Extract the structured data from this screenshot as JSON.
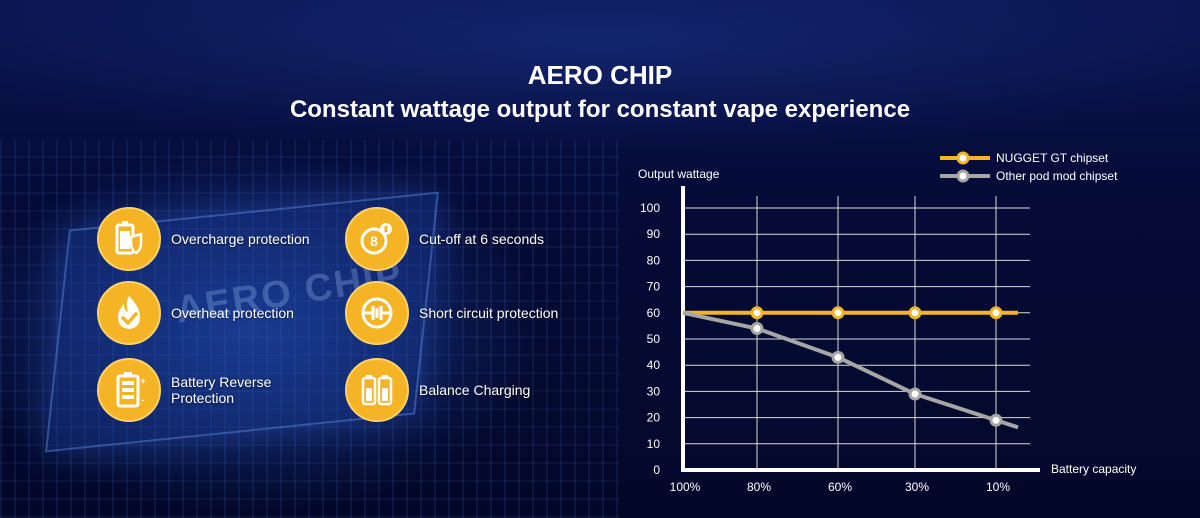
{
  "header": {
    "title": "AERO CHIP",
    "subtitle": "Constant wattage output for constant  vape experience"
  },
  "background": {
    "chip_text": "AERO CHIP"
  },
  "features": [
    {
      "label": "Overcharge protection",
      "icon": "battery-shield-icon"
    },
    {
      "label": "Cut-off at 6 seconds",
      "icon": "timer-8-icon"
    },
    {
      "label": "Overheat protection",
      "icon": "flame-check-icon"
    },
    {
      "label": "Short circuit protection",
      "icon": "circuit-icon"
    },
    {
      "label": "Battery Reverse\nProtection",
      "icon": "battery-reverse-icon"
    },
    {
      "label": "Balance Charging",
      "icon": "dual-battery-icon"
    }
  ],
  "colors": {
    "accent": "#f5b326",
    "nugget_series": "#f5b326",
    "other_series": "#a6a6a6",
    "background": "#050b36"
  },
  "chart_data": {
    "type": "line",
    "title": "",
    "ylabel": "Output wattage",
    "xlabel": "Battery capacity",
    "categories": [
      "100%",
      "80%",
      "60%",
      "30%",
      "10%"
    ],
    "ylim": [
      0,
      100
    ],
    "yticks": [
      0,
      10,
      20,
      30,
      40,
      50,
      60,
      70,
      80,
      90,
      100
    ],
    "grid": true,
    "legend": "top-right",
    "series": [
      {
        "name": "NUGGET GT chipset",
        "color": "#f5b326",
        "values": [
          60,
          60,
          60,
          60,
          60
        ]
      },
      {
        "name": "Other pod mod chipset",
        "color": "#a6a6a6",
        "values": [
          60,
          54,
          43,
          29,
          19
        ]
      }
    ]
  }
}
